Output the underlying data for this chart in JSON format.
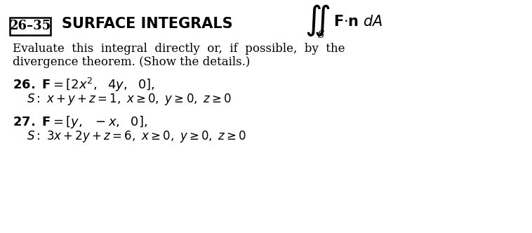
{
  "bg_color": "#ffffff",
  "text_color": "#000000",
  "box_label": "26–35",
  "title_bold": "SURFACE INTEGRALS",
  "integral_sub": "S",
  "intro_line1": "Evaluate  this  integral  directly  or,  if  possible,  by  the",
  "intro_line2": "divergence theorem. (Show the details.)",
  "prob26_label": "26.",
  "prob27_label": "27."
}
